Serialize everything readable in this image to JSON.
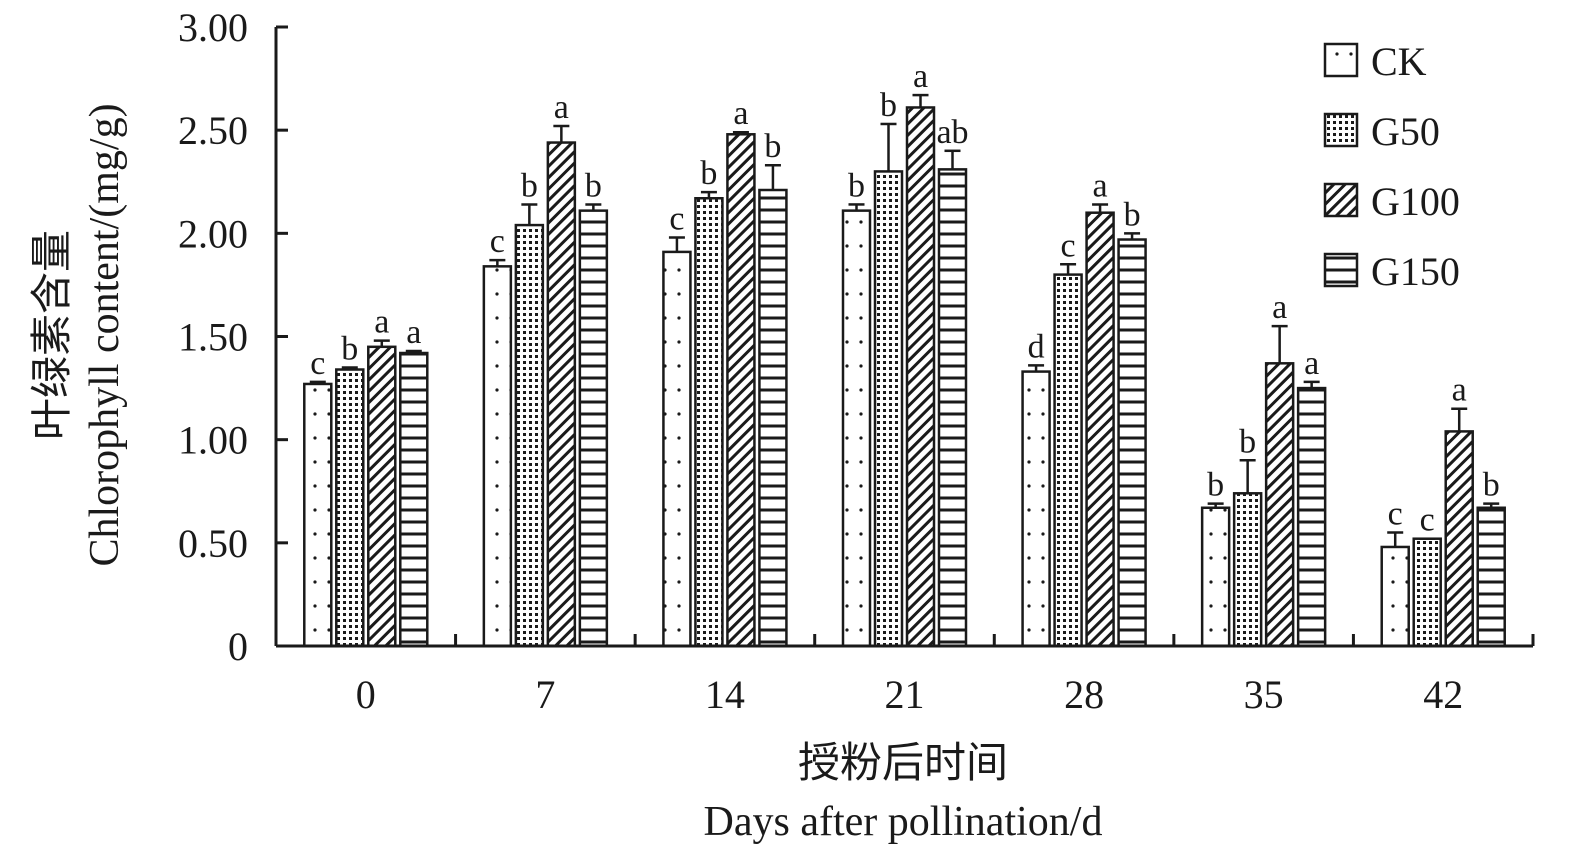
{
  "chart_data": {
    "type": "bar",
    "title": "",
    "xlabel_cn": "授粉后时间",
    "xlabel": "Days after pollination/d",
    "ylabel_cn": "叶绿素含量",
    "ylabel": "Chlorophyll content/(mg/g)",
    "ylim": [
      0,
      3.0
    ],
    "yticks": [
      "0",
      "0.50",
      "1.00",
      "1.50",
      "2.00",
      "2.50",
      "3.00"
    ],
    "categories": [
      "0",
      "7",
      "14",
      "21",
      "28",
      "35",
      "42"
    ],
    "legend_position": "top-right",
    "series": [
      {
        "name": "CK",
        "pattern": "dots",
        "values": [
          1.27,
          1.84,
          1.91,
          2.11,
          1.33,
          0.67,
          0.48
        ],
        "errors": [
          0.01,
          0.03,
          0.07,
          0.03,
          0.03,
          0.02,
          0.07
        ],
        "letters": [
          "c",
          "c",
          "c",
          "b",
          "d",
          "b",
          "c"
        ]
      },
      {
        "name": "G50",
        "pattern": "dense-dots",
        "values": [
          1.34,
          2.04,
          2.17,
          2.3,
          1.8,
          0.74,
          0.52
        ],
        "errors": [
          0.01,
          0.1,
          0.03,
          0.23,
          0.05,
          0.16,
          0.0
        ],
        "letters": [
          "b",
          "b",
          "b",
          "b",
          "c",
          "b",
          "c"
        ]
      },
      {
        "name": "G100",
        "pattern": "diagonal",
        "values": [
          1.45,
          2.44,
          2.48,
          2.61,
          2.1,
          1.37,
          1.04
        ],
        "errors": [
          0.03,
          0.08,
          0.01,
          0.06,
          0.04,
          0.18,
          0.11
        ],
        "letters": [
          "a",
          "a",
          "a",
          "a",
          "a",
          "a",
          "a"
        ]
      },
      {
        "name": "G150",
        "pattern": "horizontal",
        "values": [
          1.42,
          2.11,
          2.21,
          2.31,
          1.97,
          1.25,
          0.67
        ],
        "errors": [
          0.01,
          0.03,
          0.12,
          0.09,
          0.03,
          0.03,
          0.02
        ],
        "letters": [
          "a",
          "b",
          "b",
          "ab",
          "b",
          "a",
          "b"
        ]
      }
    ]
  }
}
